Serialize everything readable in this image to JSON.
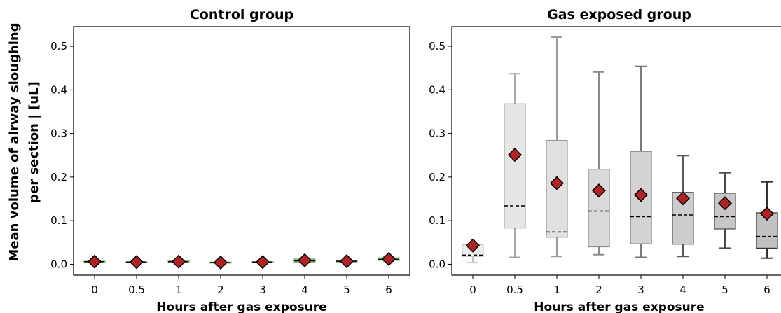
{
  "ylabel_line1": "Mean volume of airway sloughing",
  "ylabel_line2": "per section | [uL]",
  "chart_data": [
    {
      "type": "box",
      "title": "Control group",
      "xlabel": "Hours after gas exposure",
      "ylabel": "Mean volume of airway sloughing per section | [uL]",
      "categories": [
        "0",
        "0.5",
        "1",
        "2",
        "3",
        "4",
        "5",
        "6"
      ],
      "ylim": [
        -0.025,
        0.545
      ],
      "yticks": [
        "0.0",
        "0.1",
        "0.2",
        "0.3",
        "0.4",
        "0.5"
      ],
      "grid": false,
      "box_color": "#7ab87a",
      "boxes": [
        {
          "whislo": 0.004,
          "q1": 0.005,
          "med": 0.006,
          "q3": 0.007,
          "whishi": 0.008
        },
        {
          "whislo": 0.003,
          "q1": 0.004,
          "med": 0.005,
          "q3": 0.006,
          "whishi": 0.007
        },
        {
          "whislo": 0.004,
          "q1": 0.005,
          "med": 0.006,
          "q3": 0.008,
          "whishi": 0.009
        },
        {
          "whislo": 0.002,
          "q1": 0.003,
          "med": 0.004,
          "q3": 0.005,
          "whishi": 0.006
        },
        {
          "whislo": 0.003,
          "q1": 0.004,
          "med": 0.005,
          "q3": 0.006,
          "whishi": 0.007
        },
        {
          "whislo": 0.004,
          "q1": 0.005,
          "med": 0.008,
          "q3": 0.012,
          "whishi": 0.014
        },
        {
          "whislo": 0.004,
          "q1": 0.005,
          "med": 0.007,
          "q3": 0.009,
          "whishi": 0.01
        },
        {
          "whislo": 0.007,
          "q1": 0.009,
          "med": 0.011,
          "q3": 0.015,
          "whishi": 0.017
        }
      ],
      "means": [
        0.006,
        0.005,
        0.006,
        0.004,
        0.005,
        0.009,
        0.007,
        0.012
      ]
    },
    {
      "type": "box",
      "title": "Gas exposed group",
      "xlabel": "Hours after gas exposure",
      "ylabel": "",
      "categories": [
        "0",
        "0.5",
        "1",
        "2",
        "3",
        "4",
        "5",
        "6"
      ],
      "ylim": [
        -0.025,
        0.545
      ],
      "yticks": [
        "0.0",
        "0.1",
        "0.2",
        "0.3",
        "0.4",
        "0.5"
      ],
      "grid": false,
      "box_fills": [
        "#eeeeee",
        "#e6e6e6",
        "#e0e0e0",
        "#d9d9d9",
        "#d3d3d3",
        "#cdcdcd",
        "#c7c7c7",
        "#c1c1c1"
      ],
      "line_colors": [
        "#c4c4c4",
        "#a8a8a8",
        "#999999",
        "#8a8a8a",
        "#7a7a7a",
        "#5a5a5a",
        "#4a4a4a",
        "#333333"
      ],
      "boxes": [
        {
          "whislo": 0.004,
          "q1": 0.018,
          "med": 0.021,
          "q3": 0.045,
          "whishi": 0.045
        },
        {
          "whislo": 0.016,
          "q1": 0.083,
          "med": 0.134,
          "q3": 0.368,
          "whishi": 0.437
        },
        {
          "whislo": 0.018,
          "q1": 0.062,
          "med": 0.074,
          "q3": 0.284,
          "whishi": 0.521
        },
        {
          "whislo": 0.022,
          "q1": 0.04,
          "med": 0.122,
          "q3": 0.218,
          "whishi": 0.441
        },
        {
          "whislo": 0.016,
          "q1": 0.047,
          "med": 0.109,
          "q3": 0.259,
          "whishi": 0.454
        },
        {
          "whislo": 0.018,
          "q1": 0.046,
          "med": 0.113,
          "q3": 0.165,
          "whishi": 0.249
        },
        {
          "whislo": 0.037,
          "q1": 0.081,
          "med": 0.109,
          "q3": 0.163,
          "whishi": 0.21
        },
        {
          "whislo": 0.014,
          "q1": 0.037,
          "med": 0.064,
          "q3": 0.118,
          "whishi": 0.189
        }
      ],
      "means": [
        0.043,
        0.251,
        0.186,
        0.169,
        0.159,
        0.151,
        0.14,
        0.116
      ]
    }
  ],
  "colors": {
    "mean_marker": "#b22222",
    "median_line": "#000000",
    "axis": "#000000"
  }
}
